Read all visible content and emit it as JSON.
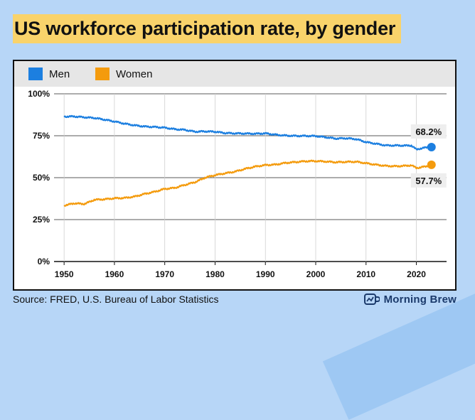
{
  "title": "US workforce participation rate, by gender",
  "source": "Source: FRED, U.S. Bureau of Labor Statistics",
  "brand": "Morning Brew",
  "colors": {
    "men": "#1c7fe0",
    "women": "#f49b0d",
    "title_highlight": "#f9d36b"
  },
  "chart_data": {
    "type": "line",
    "title": "US workforce participation rate, by gender",
    "xlim": [
      1948,
      2026
    ],
    "ylim": [
      0,
      100
    ],
    "x_ticks": [
      1950,
      1960,
      1970,
      1980,
      1990,
      2000,
      2010,
      2020
    ],
    "y_ticks": [
      0,
      25,
      50,
      75,
      100
    ],
    "y_tick_labels": [
      "0%",
      "25%",
      "50%",
      "75%",
      "100%"
    ],
    "grid": true,
    "legend": "top-left",
    "series": [
      {
        "name": "Men",
        "color": "#1c7fe0",
        "points": [
          [
            1950,
            86.4
          ],
          [
            1952,
            86.5
          ],
          [
            1954,
            86.0
          ],
          [
            1956,
            85.6
          ],
          [
            1958,
            84.6
          ],
          [
            1960,
            83.5
          ],
          [
            1962,
            82.2
          ],
          [
            1964,
            81.2
          ],
          [
            1966,
            80.5
          ],
          [
            1968,
            80.2
          ],
          [
            1970,
            79.8
          ],
          [
            1972,
            78.9
          ],
          [
            1974,
            78.5
          ],
          [
            1976,
            77.4
          ],
          [
            1978,
            77.6
          ],
          [
            1980,
            77.4
          ],
          [
            1982,
            76.6
          ],
          [
            1984,
            76.4
          ],
          [
            1986,
            76.3
          ],
          [
            1988,
            76.2
          ],
          [
            1990,
            76.4
          ],
          [
            1992,
            75.6
          ],
          [
            1994,
            75.1
          ],
          [
            1996,
            74.9
          ],
          [
            1998,
            74.9
          ],
          [
            2000,
            74.8
          ],
          [
            2002,
            74.1
          ],
          [
            2004,
            73.3
          ],
          [
            2006,
            73.5
          ],
          [
            2008,
            73.0
          ],
          [
            2010,
            71.2
          ],
          [
            2012,
            70.2
          ],
          [
            2014,
            69.2
          ],
          [
            2016,
            69.2
          ],
          [
            2018,
            69.1
          ],
          [
            2019,
            69.2
          ],
          [
            2020,
            66.8
          ],
          [
            2021,
            67.5
          ],
          [
            2022,
            68.0
          ],
          [
            2023,
            68.2
          ]
        ],
        "end_value": 2023,
        "end_label": "68.2%"
      },
      {
        "name": "Women",
        "color": "#f49b0d",
        "points": [
          [
            1950,
            33.4
          ],
          [
            1952,
            34.7
          ],
          [
            1954,
            34.3
          ],
          [
            1955,
            35.5
          ],
          [
            1956,
            36.8
          ],
          [
            1958,
            37.1
          ],
          [
            1960,
            37.7
          ],
          [
            1962,
            37.9
          ],
          [
            1964,
            38.7
          ],
          [
            1966,
            40.3
          ],
          [
            1968,
            41.6
          ],
          [
            1970,
            43.3
          ],
          [
            1972,
            43.9
          ],
          [
            1974,
            45.7
          ],
          [
            1976,
            47.3
          ],
          [
            1978,
            50.0
          ],
          [
            1980,
            51.5
          ],
          [
            1982,
            52.6
          ],
          [
            1984,
            53.6
          ],
          [
            1986,
            55.3
          ],
          [
            1988,
            56.6
          ],
          [
            1990,
            57.5
          ],
          [
            1992,
            57.8
          ],
          [
            1994,
            58.8
          ],
          [
            1996,
            59.3
          ],
          [
            1998,
            59.8
          ],
          [
            2000,
            59.9
          ],
          [
            2002,
            59.6
          ],
          [
            2004,
            59.2
          ],
          [
            2006,
            59.4
          ],
          [
            2008,
            59.5
          ],
          [
            2010,
            58.6
          ],
          [
            2012,
            57.7
          ],
          [
            2014,
            57.0
          ],
          [
            2016,
            56.8
          ],
          [
            2018,
            57.1
          ],
          [
            2019,
            57.4
          ],
          [
            2020,
            55.8
          ],
          [
            2021,
            56.2
          ],
          [
            2022,
            56.8
          ],
          [
            2023,
            57.7
          ]
        ],
        "end_label": "57.7%"
      }
    ]
  }
}
